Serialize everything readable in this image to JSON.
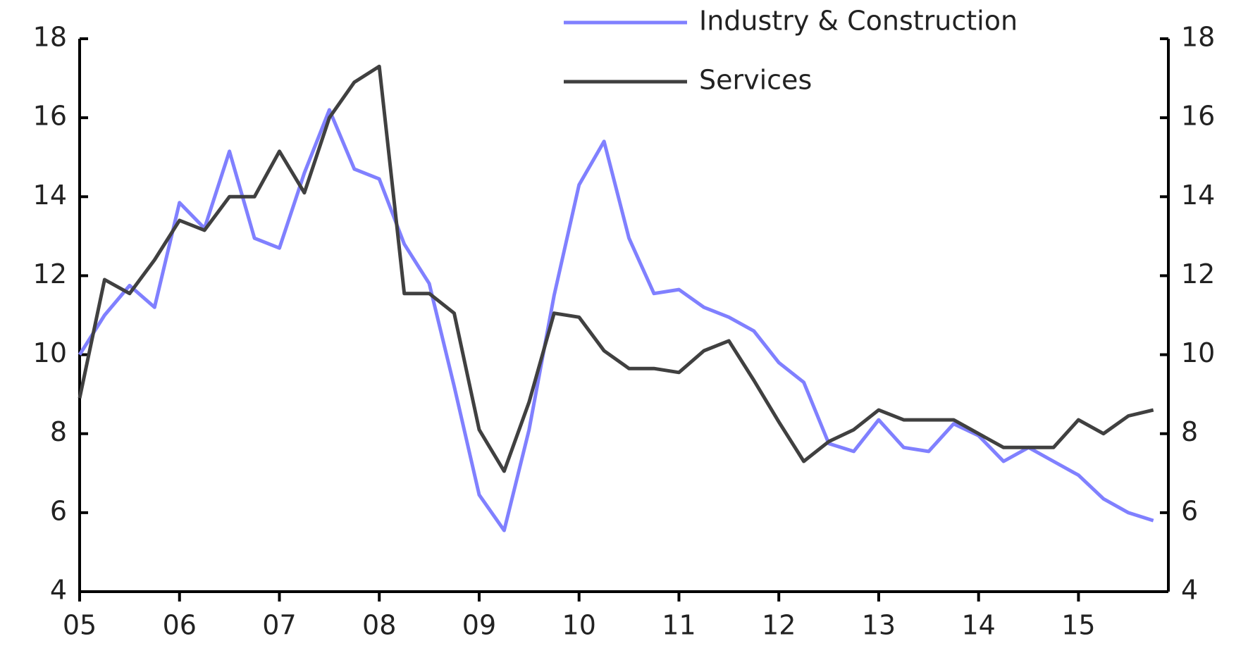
{
  "chart_data": {
    "type": "line",
    "x": [
      2005,
      2005.25,
      2005.5,
      2005.75,
      2006,
      2006.25,
      2006.5,
      2006.75,
      2007,
      2007.25,
      2007.5,
      2007.75,
      2008,
      2008.25,
      2008.5,
      2008.75,
      2009,
      2009.25,
      2009.5,
      2009.75,
      2010,
      2010.25,
      2010.5,
      2010.75,
      2011,
      2011.25,
      2011.5,
      2011.75,
      2012,
      2012.25,
      2012.5,
      2012.75,
      2013,
      2013.25,
      2013.5,
      2013.75,
      2014,
      2014.25,
      2014.5,
      2014.75,
      2015,
      2015.25,
      2015.5,
      2015.75
    ],
    "series": [
      {
        "name": "Industry & Construction",
        "color": "#8080ff",
        "values": [
          10.0,
          11.0,
          11.75,
          11.2,
          13.85,
          13.2,
          15.15,
          12.95,
          12.7,
          14.6,
          16.2,
          14.7,
          14.45,
          12.8,
          11.8,
          9.2,
          6.45,
          5.55,
          8.1,
          11.5,
          14.3,
          15.4,
          12.95,
          11.55,
          11.65,
          11.2,
          10.95,
          10.6,
          9.8,
          9.3,
          7.75,
          7.55,
          8.35,
          7.65,
          7.55,
          8.25,
          7.95,
          7.3,
          7.65,
          7.3,
          6.95,
          6.35,
          6.0,
          5.8
        ]
      },
      {
        "name": "Services",
        "color": "#404040",
        "values": [
          8.9,
          11.9,
          11.55,
          12.4,
          13.4,
          13.15,
          14.0,
          14.0,
          15.15,
          14.1,
          16.0,
          16.9,
          17.3,
          11.55,
          11.55,
          11.05,
          8.1,
          7.05,
          8.8,
          11.05,
          10.95,
          10.1,
          9.65,
          9.65,
          9.55,
          10.1,
          10.35,
          9.35,
          8.3,
          7.3,
          7.8,
          8.1,
          8.6,
          8.35,
          8.35,
          8.35,
          8.0,
          7.65,
          7.65,
          7.65,
          8.35,
          8.0,
          8.45,
          8.6
        ]
      }
    ],
    "xlim": [
      2005,
      2015.9
    ],
    "xticks": [
      {
        "value": 2005,
        "label": "05"
      },
      {
        "value": 2006,
        "label": "06"
      },
      {
        "value": 2007,
        "label": "07"
      },
      {
        "value": 2008,
        "label": "08"
      },
      {
        "value": 2009,
        "label": "09"
      },
      {
        "value": 2010,
        "label": "10"
      },
      {
        "value": 2011,
        "label": "11"
      },
      {
        "value": 2012,
        "label": "12"
      },
      {
        "value": 2013,
        "label": "13"
      },
      {
        "value": 2014,
        "label": "14"
      },
      {
        "value": 2015,
        "label": "15"
      }
    ],
    "ylim": [
      4,
      18
    ],
    "yticks": [
      4,
      6,
      8,
      10,
      12,
      14,
      16,
      18
    ],
    "y2lim": [
      4,
      18
    ],
    "y2ticks": [
      4,
      6,
      8,
      10,
      12,
      14,
      16,
      18
    ]
  }
}
